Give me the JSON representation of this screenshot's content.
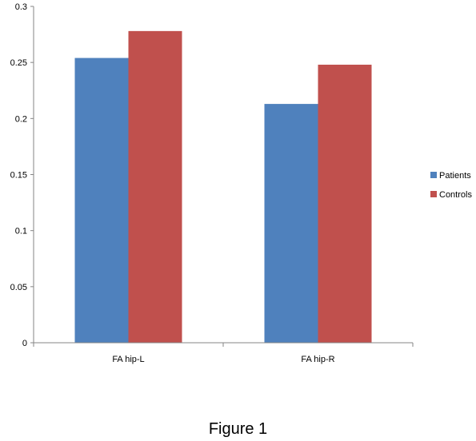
{
  "caption": "Figure 1",
  "chart_data": {
    "type": "bar",
    "categories": [
      "FA hip-L",
      "FA hip-R"
    ],
    "series": [
      {
        "name": "Patients",
        "values": [
          0.254,
          0.213
        ],
        "color": "#4F81BD"
      },
      {
        "name": "Controls",
        "values": [
          0.278,
          0.248
        ],
        "color": "#C0504D"
      }
    ],
    "ylim": [
      0,
      0.3
    ],
    "yticks": [
      0,
      0.05,
      0.1,
      0.15,
      0.2,
      0.25,
      0.3
    ],
    "ytick_labels": [
      "0",
      "0.05",
      "0.1",
      "0.15",
      "0.2",
      "0.25",
      "0.3"
    ],
    "grid": false,
    "legend": "right"
  }
}
